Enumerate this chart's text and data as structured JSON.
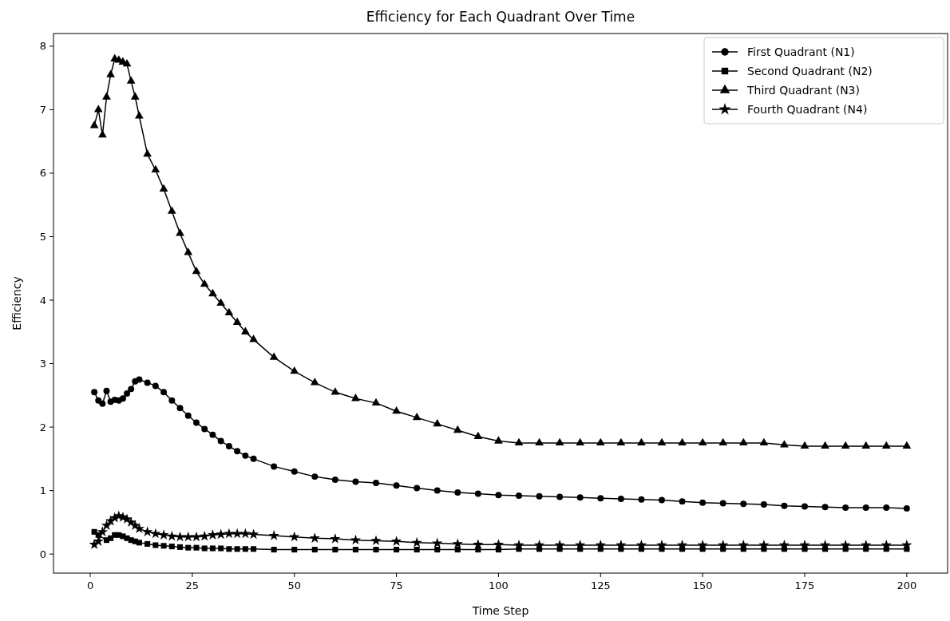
{
  "chart_data": {
    "type": "line",
    "title": "Efficiency for Each Quadrant Over Time",
    "xlabel": "Time Step",
    "ylabel": "Efficiency",
    "x": [
      1,
      2,
      3,
      4,
      5,
      6,
      7,
      8,
      9,
      10,
      11,
      12,
      14,
      16,
      18,
      20,
      22,
      24,
      26,
      28,
      30,
      32,
      34,
      36,
      38,
      40,
      45,
      50,
      55,
      60,
      65,
      70,
      75,
      80,
      85,
      90,
      95,
      100,
      105,
      110,
      115,
      120,
      125,
      130,
      135,
      140,
      145,
      150,
      155,
      160,
      165,
      170,
      175,
      180,
      185,
      190,
      195,
      200
    ],
    "xlim": [
      -9,
      210
    ],
    "xticks": [
      0,
      25,
      50,
      75,
      100,
      125,
      150,
      175,
      200
    ],
    "ylim": [
      -0.3,
      8.2
    ],
    "yticks": [
      0,
      1,
      2,
      3,
      4,
      5,
      6,
      7,
      8
    ],
    "grid": false,
    "legend": "top right",
    "line_style": "solid",
    "series": [
      {
        "name": "First Quadrant (N1)",
        "color": "#000000",
        "marker": "circle",
        "values": [
          2.55,
          2.42,
          2.37,
          2.57,
          2.4,
          2.43,
          2.42,
          2.45,
          2.53,
          2.6,
          2.72,
          2.75,
          2.7,
          2.65,
          2.55,
          2.42,
          2.3,
          2.18,
          2.07,
          1.97,
          1.88,
          1.78,
          1.7,
          1.62,
          1.55,
          1.5,
          1.38,
          1.3,
          1.22,
          1.17,
          1.14,
          1.12,
          1.08,
          1.04,
          1.0,
          0.97,
          0.95,
          0.93,
          0.92,
          0.91,
          0.9,
          0.89,
          0.88,
          0.87,
          0.86,
          0.85,
          0.83,
          0.81,
          0.8,
          0.79,
          0.78,
          0.76,
          0.75,
          0.74,
          0.73,
          0.73,
          0.73,
          0.72
        ]
      },
      {
        "name": "Second Quadrant (N2)",
        "color": "#000000",
        "marker": "square",
        "values": [
          0.35,
          0.3,
          null,
          0.22,
          0.25,
          0.3,
          0.3,
          0.28,
          0.25,
          0.22,
          0.2,
          0.18,
          0.16,
          0.14,
          0.13,
          0.12,
          0.11,
          0.1,
          0.1,
          0.09,
          0.09,
          0.09,
          0.08,
          0.08,
          0.08,
          0.08,
          0.07,
          0.07,
          0.07,
          0.07,
          0.07,
          0.07,
          0.07,
          0.07,
          0.07,
          0.07,
          0.07,
          0.07,
          0.08,
          0.08,
          0.08,
          0.08,
          0.08,
          0.08,
          0.08,
          0.08,
          0.08,
          0.08,
          0.08,
          0.08,
          0.08,
          0.08,
          0.08,
          0.08,
          0.08,
          0.08,
          0.08,
          0.08
        ]
      },
      {
        "name": "Third Quadrant (N3)",
        "color": "#000000",
        "marker": "triangle",
        "values": [
          6.75,
          7.0,
          6.6,
          7.2,
          7.55,
          7.8,
          7.78,
          7.75,
          7.72,
          7.45,
          7.2,
          6.9,
          6.3,
          6.05,
          5.75,
          5.4,
          5.05,
          4.75,
          4.45,
          4.25,
          4.1,
          3.95,
          3.8,
          3.65,
          3.5,
          3.38,
          3.1,
          2.88,
          2.7,
          2.55,
          2.45,
          2.38,
          2.25,
          2.15,
          2.05,
          1.95,
          1.85,
          1.78,
          1.75,
          1.75,
          1.75,
          1.75,
          1.75,
          1.75,
          1.75,
          1.75,
          1.75,
          1.75,
          1.75,
          1.75,
          1.75,
          1.72,
          1.7,
          1.7,
          1.7,
          1.7,
          1.7,
          1.7
        ]
      },
      {
        "name": "Fourth Quadrant (N4)",
        "color": "#000000",
        "marker": "star",
        "values": [
          0.15,
          0.2,
          0.35,
          0.45,
          0.52,
          0.57,
          0.6,
          0.58,
          0.55,
          0.5,
          0.45,
          0.4,
          0.35,
          0.32,
          0.3,
          0.28,
          0.27,
          0.27,
          0.27,
          0.28,
          0.3,
          0.31,
          0.32,
          0.32,
          0.32,
          0.31,
          0.29,
          0.27,
          0.25,
          0.24,
          0.22,
          0.21,
          0.2,
          0.18,
          0.17,
          0.16,
          0.15,
          0.15,
          0.14,
          0.14,
          0.14,
          0.14,
          0.14,
          0.14,
          0.14,
          0.14,
          0.14,
          0.14,
          0.14,
          0.14,
          0.14,
          0.14,
          0.14,
          0.14,
          0.14,
          0.14,
          0.14,
          0.14
        ]
      }
    ]
  }
}
